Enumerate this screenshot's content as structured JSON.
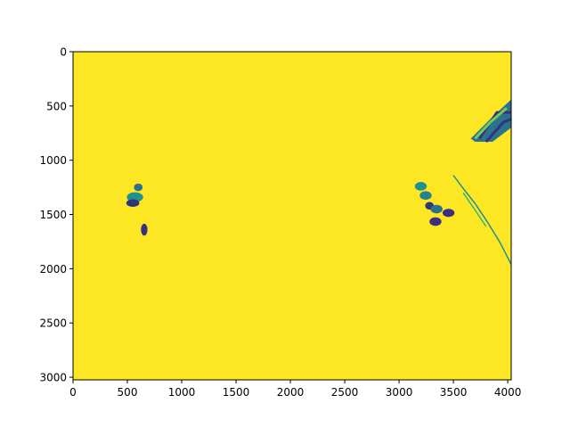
{
  "chart_data": {
    "type": "heatmap",
    "title": "",
    "xlabel": "",
    "ylabel": "",
    "xlim": [
      0,
      4032
    ],
    "ylim": [
      3024,
      0
    ],
    "x_ticks": [
      0,
      500,
      1000,
      1500,
      2000,
      2500,
      3000,
      3500,
      4000
    ],
    "x_tick_labels": [
      "0",
      "500",
      "1000",
      "1500",
      "2000",
      "2500",
      "3000",
      "3500",
      "4000"
    ],
    "y_ticks": [
      0,
      500,
      1000,
      1500,
      2000,
      2500,
      3000
    ],
    "y_tick_labels": [
      "0",
      "500",
      "1000",
      "1500",
      "2000",
      "2500",
      "3000"
    ],
    "colormap": "viridis",
    "background_color": "#fde725",
    "grid": false,
    "blobs": [
      {
        "cx": 600,
        "cy": 1250,
        "rx": 40,
        "ry": 35,
        "color": "#2c728e"
      },
      {
        "cx": 570,
        "cy": 1340,
        "rx": 75,
        "ry": 45,
        "color": "#21918c"
      },
      {
        "cx": 550,
        "cy": 1395,
        "rx": 60,
        "ry": 35,
        "color": "#31357a"
      },
      {
        "cx": 655,
        "cy": 1640,
        "rx": 30,
        "ry": 55,
        "color": "#3b2f80"
      },
      {
        "cx": 3200,
        "cy": 1240,
        "rx": 55,
        "ry": 40,
        "color": "#21918c"
      },
      {
        "cx": 3245,
        "cy": 1325,
        "rx": 55,
        "ry": 40,
        "color": "#26828e"
      },
      {
        "cx": 3280,
        "cy": 1420,
        "rx": 40,
        "ry": 35,
        "color": "#31357a"
      },
      {
        "cx": 3345,
        "cy": 1450,
        "rx": 55,
        "ry": 40,
        "color": "#2c728e"
      },
      {
        "cx": 3455,
        "cy": 1485,
        "rx": 55,
        "ry": 38,
        "color": "#3b2f80"
      },
      {
        "cx": 3335,
        "cy": 1565,
        "rx": 55,
        "ry": 40,
        "color": "#3b2f80"
      }
    ],
    "streaks": [
      {
        "points": [
          [
            3500,
            1140
          ],
          [
            3590,
            1260
          ],
          [
            3700,
            1400
          ],
          [
            3820,
            1580
          ],
          [
            3930,
            1760
          ],
          [
            4032,
            1960
          ]
        ],
        "color": "#21918c"
      },
      {
        "points": [
          [
            3590,
            1300
          ],
          [
            3700,
            1460
          ],
          [
            3800,
            1610
          ]
        ],
        "color": "#35b779"
      }
    ],
    "corner_patch": {
      "points": [
        [
          3660,
          800
        ],
        [
          3860,
          600
        ],
        [
          4032,
          440
        ],
        [
          4032,
          700
        ],
        [
          3860,
          830
        ],
        [
          3700,
          830
        ]
      ],
      "stripes": [
        {
          "points": [
            [
              3740,
              800
            ],
            [
              3900,
              560
            ],
            [
              4032,
              560
            ]
          ],
          "color": "#3b2f80"
        },
        {
          "points": [
            [
              3800,
              830
            ],
            [
              3960,
              650
            ],
            [
              4032,
              620
            ]
          ],
          "color": "#31357a"
        },
        {
          "points": [
            [
              3700,
              800
            ],
            [
              3850,
              640
            ],
            [
              3990,
              520
            ]
          ],
          "color": "#6ece58"
        }
      ],
      "color": "#2c728e"
    }
  }
}
